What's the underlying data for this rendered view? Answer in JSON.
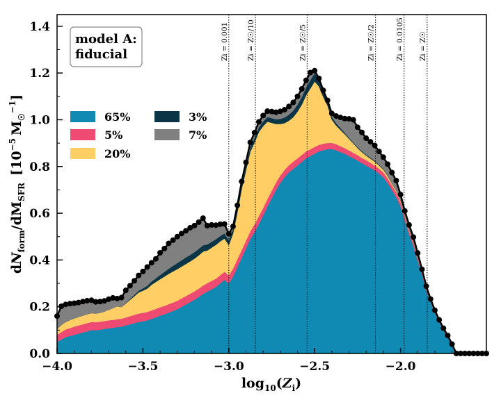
{
  "chart_data": {
    "type": "area",
    "stacked": true,
    "xlabel": "log10(Zi)",
    "ylabel": "dNform/dMSFR  [10−5 M☉−1]",
    "xlim": [
      -4.0,
      -1.5
    ],
    "ylim": [
      0.0,
      1.45
    ],
    "x_ticks": [
      -4.0,
      -3.5,
      -3.0,
      -2.5,
      -2.0
    ],
    "x_tick_labels": [
      "−4.0",
      "−3.5",
      "−3.0",
      "−2.5",
      "−2.0"
    ],
    "y_ticks": [
      0.0,
      0.2,
      0.4,
      0.6,
      0.8,
      1.0,
      1.2,
      1.4
    ],
    "y_tick_labels": [
      "0.0",
      "0.2",
      "0.4",
      "0.6",
      "0.8",
      "1.0",
      "1.2",
      "1.4"
    ],
    "annotation_box": [
      "model A:",
      "fiducial"
    ],
    "legend_placement": "left",
    "x": [
      -4.0,
      -3.975,
      -3.95,
      -3.925,
      -3.9,
      -3.875,
      -3.85,
      -3.825,
      -3.8,
      -3.775,
      -3.75,
      -3.725,
      -3.7,
      -3.675,
      -3.65,
      -3.625,
      -3.6,
      -3.575,
      -3.55,
      -3.525,
      -3.5,
      -3.475,
      -3.45,
      -3.425,
      -3.4,
      -3.375,
      -3.35,
      -3.325,
      -3.3,
      -3.275,
      -3.25,
      -3.225,
      -3.2,
      -3.175,
      -3.15,
      -3.125,
      -3.1,
      -3.075,
      -3.05,
      -3.025,
      -3.0,
      -2.975,
      -2.95,
      -2.925,
      -2.9,
      -2.875,
      -2.85,
      -2.825,
      -2.8,
      -2.775,
      -2.75,
      -2.725,
      -2.7,
      -2.675,
      -2.65,
      -2.625,
      -2.6,
      -2.575,
      -2.55,
      -2.525,
      -2.5,
      -2.475,
      -2.45,
      -2.425,
      -2.4,
      -2.375,
      -2.35,
      -2.325,
      -2.3,
      -2.275,
      -2.25,
      -2.225,
      -2.2,
      -2.175,
      -2.15,
      -2.125,
      -2.1,
      -2.075,
      -2.05,
      -2.025,
      -2.0,
      -1.975,
      -1.95,
      -1.925,
      -1.9,
      -1.875,
      -1.85,
      -1.825,
      -1.8,
      -1.775,
      -1.75,
      -1.725,
      -1.7,
      -1.675,
      -1.65,
      -1.625,
      -1.6,
      -1.575,
      -1.55,
      -1.525,
      -1.5
    ],
    "series": [
      {
        "name": "65%",
        "color": "#1089b3",
        "values": [
          0.05,
          0.06,
          0.07,
          0.075,
          0.08,
          0.085,
          0.09,
          0.095,
          0.1,
          0.1,
          0.102,
          0.105,
          0.108,
          0.11,
          0.113,
          0.115,
          0.12,
          0.125,
          0.13,
          0.135,
          0.138,
          0.142,
          0.148,
          0.155,
          0.162,
          0.168,
          0.175,
          0.182,
          0.19,
          0.2,
          0.21,
          0.22,
          0.23,
          0.242,
          0.255,
          0.265,
          0.275,
          0.285,
          0.3,
          0.315,
          0.3,
          0.33,
          0.37,
          0.41,
          0.45,
          0.49,
          0.52,
          0.555,
          0.59,
          0.63,
          0.665,
          0.7,
          0.73,
          0.755,
          0.775,
          0.79,
          0.805,
          0.82,
          0.835,
          0.845,
          0.855,
          0.865,
          0.87,
          0.874,
          0.875,
          0.87,
          0.862,
          0.855,
          0.845,
          0.836,
          0.826,
          0.815,
          0.805,
          0.794,
          0.784,
          0.77,
          0.755,
          0.73,
          0.7,
          0.67,
          0.63,
          0.57,
          0.51,
          0.46,
          0.4,
          0.34,
          0.27,
          0.22,
          0.175,
          0.135,
          0.1,
          0.07,
          0.035,
          0.0,
          0.0,
          0.0,
          0.0,
          0.0,
          0.0,
          0.0,
          0.0
        ]
      },
      {
        "name": "5%",
        "color": "#ef4a72",
        "values": [
          0.03,
          0.032,
          0.033,
          0.034,
          0.035,
          0.035,
          0.035,
          0.035,
          0.035,
          0.034,
          0.034,
          0.034,
          0.034,
          0.034,
          0.034,
          0.034,
          0.034,
          0.035,
          0.035,
          0.036,
          0.036,
          0.036,
          0.036,
          0.036,
          0.036,
          0.036,
          0.036,
          0.036,
          0.036,
          0.036,
          0.036,
          0.036,
          0.036,
          0.036,
          0.036,
          0.036,
          0.036,
          0.035,
          0.035,
          0.035,
          0.034,
          0.034,
          0.034,
          0.034,
          0.033,
          0.033,
          0.033,
          0.033,
          0.033,
          0.032,
          0.032,
          0.032,
          0.032,
          0.031,
          0.031,
          0.031,
          0.03,
          0.03,
          0.03,
          0.029,
          0.029,
          0.028,
          0.028,
          0.027,
          0.026,
          0.026,
          0.025,
          0.024,
          0.024,
          0.023,
          0.023,
          0.022,
          0.022,
          0.022,
          0.021,
          0.021,
          0.02,
          0.02,
          0.02,
          0.02,
          0.018,
          0.016,
          0.015,
          0.014,
          0.013,
          0.012,
          0.011,
          0.01,
          0.01,
          0.009,
          0.008,
          0.007,
          0.005,
          0.0,
          0.0,
          0.0,
          0.0,
          0.0,
          0.0,
          0.0,
          0.0
        ]
      },
      {
        "name": "20%",
        "color": "#ffcf66",
        "values": [
          0.025,
          0.03,
          0.032,
          0.034,
          0.035,
          0.036,
          0.037,
          0.038,
          0.038,
          0.037,
          0.038,
          0.04,
          0.045,
          0.05,
          0.055,
          0.05,
          0.06,
          0.07,
          0.08,
          0.09,
          0.095,
          0.1,
          0.11,
          0.115,
          0.12,
          0.125,
          0.13,
          0.133,
          0.135,
          0.136,
          0.137,
          0.138,
          0.14,
          0.142,
          0.145,
          0.14,
          0.142,
          0.145,
          0.145,
          0.142,
          0.13,
          0.15,
          0.2,
          0.26,
          0.3,
          0.34,
          0.35,
          0.36,
          0.35,
          0.33,
          0.29,
          0.25,
          0.22,
          0.2,
          0.19,
          0.19,
          0.2,
          0.215,
          0.24,
          0.26,
          0.28,
          0.25,
          0.2,
          0.16,
          0.1,
          0.08,
          0.07,
          0.06,
          0.05,
          0.04,
          0.03,
          0.025,
          0.02,
          0.018,
          0.016,
          0.014,
          0.012,
          0.01,
          0.008,
          0.006,
          0.006,
          0.005,
          0.004,
          0.003,
          0.002,
          0.001,
          0.0,
          0.0,
          0.0,
          0.0,
          0.0,
          0.0,
          0.0,
          0.0,
          0.0,
          0.0,
          0.0,
          0.0,
          0.0,
          0.0,
          0.0
        ]
      },
      {
        "name": "3%",
        "color": "#0a3547",
        "values": [
          0.0,
          0.0,
          0.0,
          0.0,
          0.0,
          0.0,
          0.0,
          0.0,
          0.0,
          0.0,
          0.0,
          0.0,
          0.0,
          0.0,
          0.0,
          0.0,
          0.002,
          0.004,
          0.006,
          0.008,
          0.01,
          0.012,
          0.014,
          0.016,
          0.018,
          0.02,
          0.022,
          0.024,
          0.026,
          0.027,
          0.028,
          0.028,
          0.028,
          0.028,
          0.027,
          0.026,
          0.025,
          0.024,
          0.023,
          0.022,
          0.021,
          0.02,
          0.02,
          0.02,
          0.02,
          0.02,
          0.02,
          0.02,
          0.02,
          0.02,
          0.02,
          0.02,
          0.022,
          0.024,
          0.026,
          0.028,
          0.03,
          0.032,
          0.034,
          0.036,
          0.036,
          0.03,
          0.024,
          0.018,
          0.012,
          0.01,
          0.008,
          0.006,
          0.005,
          0.004,
          0.004,
          0.004,
          0.004,
          0.004,
          0.004,
          0.004,
          0.003,
          0.003,
          0.002,
          0.002,
          0.002,
          0.002,
          0.001,
          0.001,
          0.0,
          0.0,
          0.0,
          0.0,
          0.0,
          0.0,
          0.0,
          0.0,
          0.0,
          0.0,
          0.0,
          0.0,
          0.0,
          0.0,
          0.0,
          0.0,
          0.0
        ]
      },
      {
        "name": "7%",
        "color": "#808080",
        "values": [
          0.055,
          0.08,
          0.075,
          0.07,
          0.065,
          0.062,
          0.06,
          0.058,
          0.055,
          0.05,
          0.048,
          0.046,
          0.045,
          0.044,
          0.033,
          0.04,
          0.054,
          0.056,
          0.06,
          0.065,
          0.072,
          0.08,
          0.08,
          0.083,
          0.095,
          0.1,
          0.108,
          0.11,
          0.113,
          0.114,
          0.114,
          0.116,
          0.113,
          0.114,
          0.116,
          0.08,
          0.072,
          0.06,
          0.05,
          0.04,
          0.027,
          0.01,
          0.01,
          0.012,
          0.015,
          0.02,
          0.022,
          0.023,
          0.025,
          0.025,
          0.028,
          0.03,
          0.032,
          0.033,
          0.035,
          0.035,
          0.035,
          0.035,
          0.03,
          0.032,
          0.01,
          0.004,
          0.004,
          0.004,
          0.014,
          0.03,
          0.045,
          0.06,
          0.08,
          0.097,
          0.085,
          0.08,
          0.07,
          0.068,
          0.065,
          0.055,
          0.05,
          0.047,
          0.044,
          0.042,
          0.024,
          0.017,
          0.02,
          0.02,
          0.015,
          0.007,
          0.007,
          0.003,
          0.0,
          0.0,
          0.0,
          0.0,
          0.0,
          0.0,
          0.0,
          0.0,
          0.0,
          0.0,
          0.0,
          0.0,
          0.0
        ]
      }
    ],
    "reference_lines": [
      {
        "x": -3.0,
        "label": "Zi = 0.001"
      },
      {
        "x": -2.845,
        "label": "Zi = Z☉/10"
      },
      {
        "x": -2.544,
        "label": "Zi = Z☉/5"
      },
      {
        "x": -2.146,
        "label": "Zi = Z☉/2"
      },
      {
        "x": -1.979,
        "label": "Zi = 0.0105"
      },
      {
        "x": -1.845,
        "label": "Zi = Z☉"
      }
    ]
  },
  "text": {
    "box_line1": "model A:",
    "box_line2": "fiducial",
    "legend_65": "65%",
    "legend_5": "5%",
    "legend_20": "20%",
    "legend_3": "3%",
    "legend_7": "7%",
    "xlabel_main": "log",
    "xlabel_sub": "10",
    "xlabel_paren": "(",
    "xlabel_Z": "Z",
    "xlabel_i": "i",
    "xlabel_close": ")",
    "ylabel_d1": "d",
    "ylabel_N": "N",
    "ylabel_form": "form",
    "ylabel_slash": "/dM",
    "ylabel_SFR": "SFR",
    "ylabel_bracket": "[10",
    "ylabel_exp": "−5",
    "ylabel_M": "M",
    "ylabel_sun": "☉",
    "ylabel_exp2": "−1",
    "ylabel_close": "]"
  }
}
